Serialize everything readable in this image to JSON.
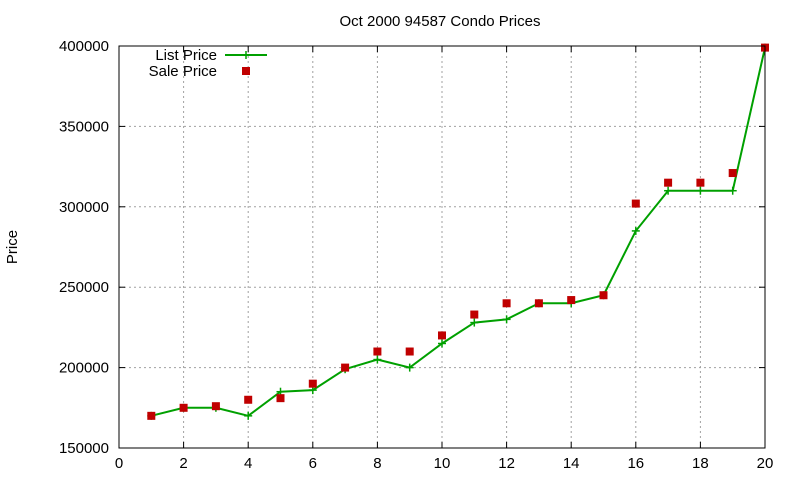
{
  "chart_data": {
    "type": "line",
    "title": "Oct 2000 94587 Condo Prices",
    "xlabel": "",
    "ylabel": "Price",
    "xlim": [
      0,
      20
    ],
    "ylim": [
      150000,
      400000
    ],
    "xticks": [
      0,
      2,
      4,
      6,
      8,
      10,
      12,
      14,
      16,
      18,
      20
    ],
    "yticks": [
      150000,
      200000,
      250000,
      300000,
      350000,
      400000
    ],
    "grid": true,
    "legend_position": "top-left",
    "series": [
      {
        "name": "List Price",
        "style": "line-with-plus",
        "color": "#00a000",
        "x": [
          1,
          2,
          3,
          4,
          5,
          6,
          7,
          8,
          9,
          10,
          11,
          12,
          13,
          14,
          15,
          16,
          17,
          18,
          19,
          20
        ],
        "y": [
          170000,
          175000,
          175000,
          170000,
          185000,
          186000,
          199000,
          205000,
          200000,
          215000,
          228000,
          230000,
          240000,
          240000,
          245000,
          285000,
          310000,
          310000,
          310000,
          399000
        ]
      },
      {
        "name": "Sale Price",
        "style": "square-points",
        "color": "#c00000",
        "x": [
          1,
          2,
          3,
          4,
          5,
          6,
          7,
          8,
          9,
          10,
          11,
          12,
          13,
          14,
          15,
          16,
          17,
          18,
          19,
          20
        ],
        "y": [
          170000,
          175000,
          176000,
          180000,
          181000,
          190000,
          200000,
          210000,
          210000,
          220000,
          233000,
          240000,
          240000,
          242000,
          245000,
          302000,
          315000,
          315000,
          321000,
          399000
        ]
      }
    ]
  }
}
